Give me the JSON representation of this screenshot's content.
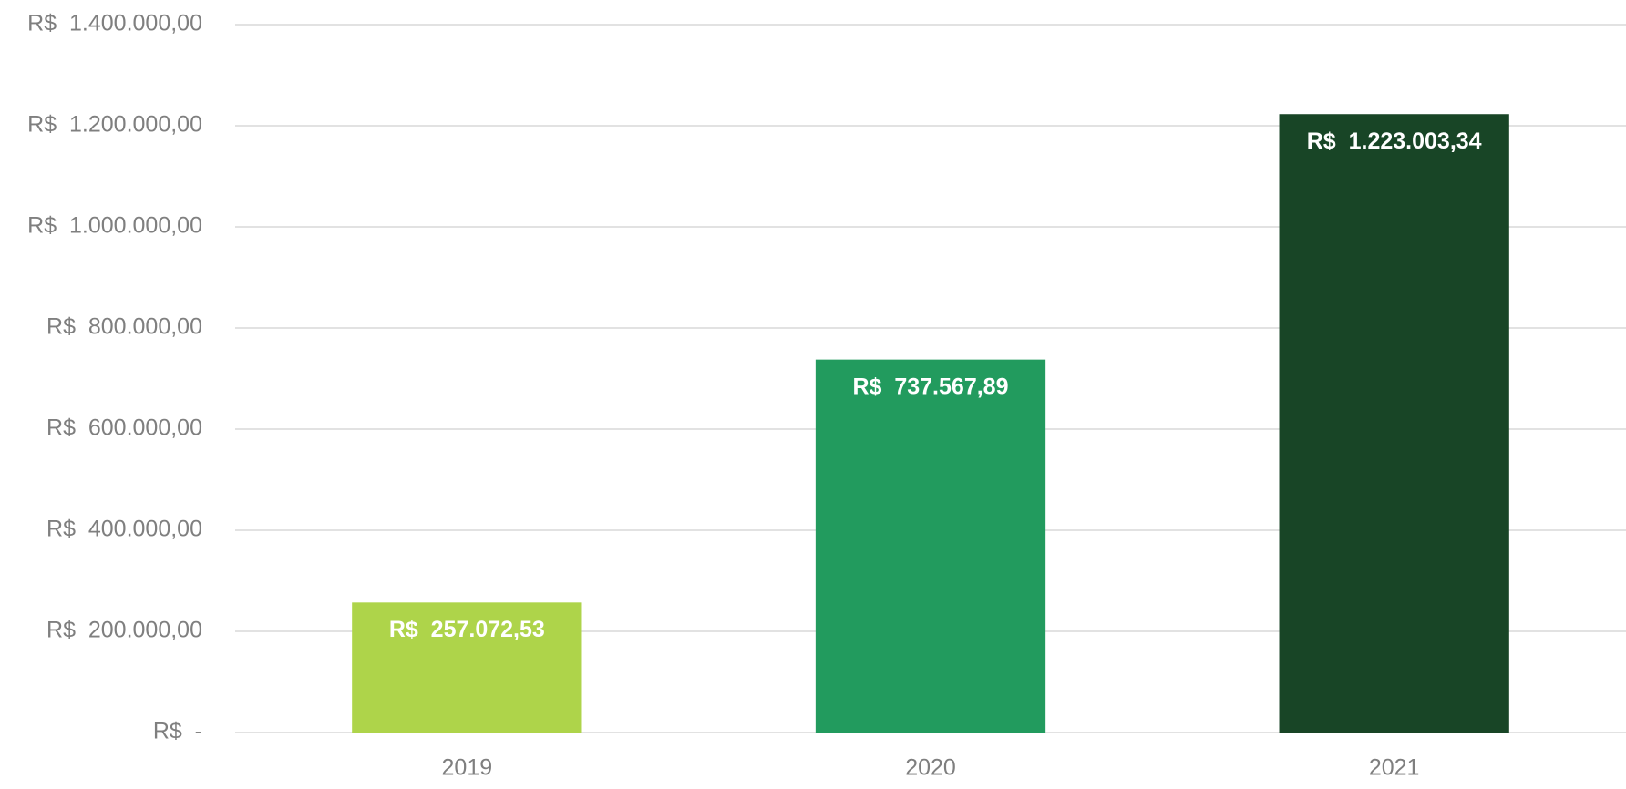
{
  "chart_data": {
    "type": "bar",
    "categories": [
      "2019",
      "2020",
      "2021"
    ],
    "values": [
      257072.53,
      737567.89,
      1223003.34
    ],
    "value_labels": [
      "R$  257.072,53",
      "R$  737.567,89",
      "R$  1.223.003,34"
    ],
    "colors": [
      "#aed44a",
      "#229b5e",
      "#184526"
    ],
    "ylim": [
      0,
      1400000
    ],
    "yticks": [
      {
        "value": 0,
        "label": "R$  -"
      },
      {
        "value": 200000,
        "label": "R$  200.000,00"
      },
      {
        "value": 400000,
        "label": "R$  400.000,00"
      },
      {
        "value": 600000,
        "label": "R$  600.000,00"
      },
      {
        "value": 800000,
        "label": "R$  800.000,00"
      },
      {
        "value": 1000000,
        "label": "R$  1.000.000,00"
      },
      {
        "value": 1200000,
        "label": "R$  1.200.000,00"
      },
      {
        "value": 1400000,
        "label": "R$  1.400.000,00"
      }
    ],
    "grid": true
  }
}
